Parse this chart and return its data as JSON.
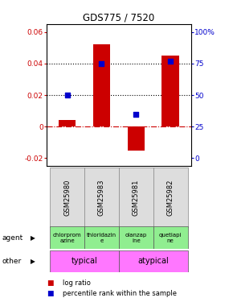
{
  "title": "GDS775 / 7520",
  "samples": [
    "GSM25980",
    "GSM25983",
    "GSM25981",
    "GSM25982"
  ],
  "log_ratios": [
    0.004,
    0.052,
    -0.015,
    0.045
  ],
  "percentile_ranks": [
    50,
    75,
    35,
    77
  ],
  "ylim": [
    -0.025,
    0.065
  ],
  "left_yticks": [
    -0.02,
    0.0,
    0.02,
    0.04,
    0.06
  ],
  "left_yticklabels": [
    "-0.02",
    "0",
    "0.02",
    "0.04",
    "0.06"
  ],
  "right_yticks": [
    0,
    25,
    50,
    75,
    100
  ],
  "right_yticklabels": [
    "0",
    "25",
    "50",
    "75",
    "100%"
  ],
  "bar_color": "#cc0000",
  "dot_color": "#0000cc",
  "agent_labels": [
    "chlorprom\nazine",
    "thioridazin\ne",
    "olanzap\nine",
    "quetiapi\nne"
  ],
  "agent_bg": "#90ee90",
  "other_bg": "#ff77ff",
  "hline_y": [
    0.02,
    0.04
  ],
  "zero_line_color": "#cc0000",
  "left_axis_color": "#cc0000",
  "right_axis_color": "#0000cc",
  "bar_width": 0.5,
  "legend_items": [
    "log ratio",
    "percentile rank within the sample"
  ],
  "legend_colors": [
    "#cc0000",
    "#0000cc"
  ]
}
